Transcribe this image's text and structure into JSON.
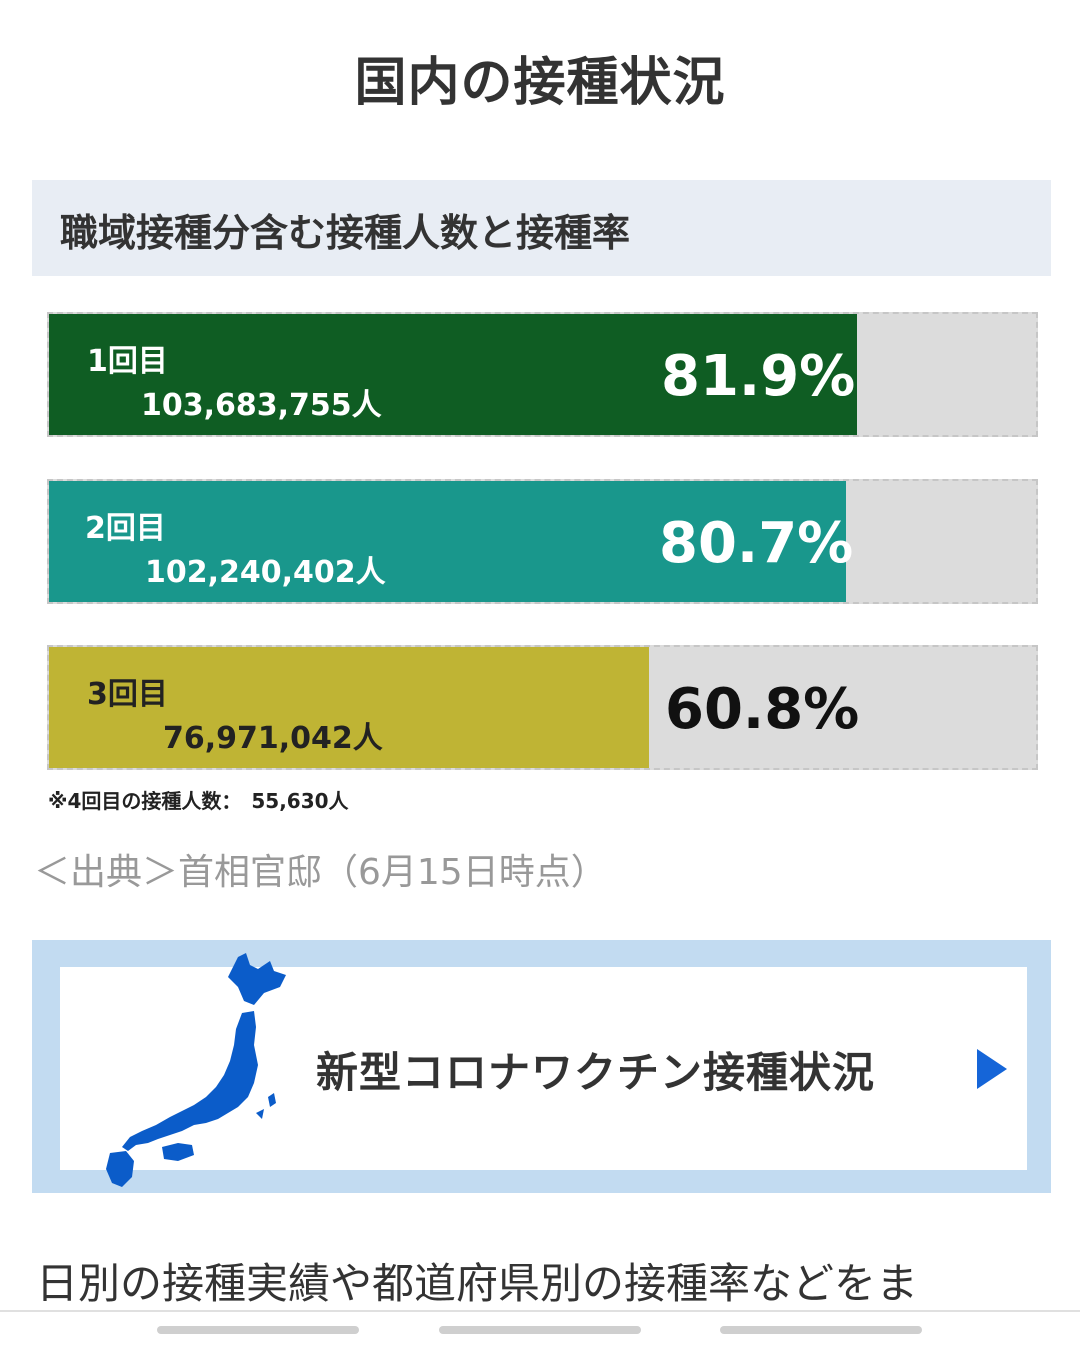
{
  "page_title": "国内の接種状況",
  "section_title": "職域接種分含む接種人数と接種率",
  "doses": [
    {
      "label": "1回目",
      "count": "103,683,755人",
      "rate": "81.9%",
      "percent": 81.9,
      "color": "#0f5d23"
    },
    {
      "label": "2回目",
      "count": "102,240,402人",
      "rate": "80.7%",
      "percent": 80.7,
      "color": "#19978c"
    },
    {
      "label": "3回目",
      "count": "76,971,042人",
      "rate": "60.8%",
      "percent": 60.8,
      "color": "#bfb434"
    }
  ],
  "note": "※4回目の接種人数：　55,630人",
  "source": "＜出典＞首相官邸（6月15日時点）",
  "banner": {
    "text": "新型コロナワクチン接種状況",
    "icon": "japan-map-icon",
    "arrow_icon": "play-arrow-icon",
    "map_color": "#0b5cc9",
    "arrow_color": "#1565d8"
  },
  "bottom_text": "日別の接種実績や都道府県別の接種率などをま"
}
